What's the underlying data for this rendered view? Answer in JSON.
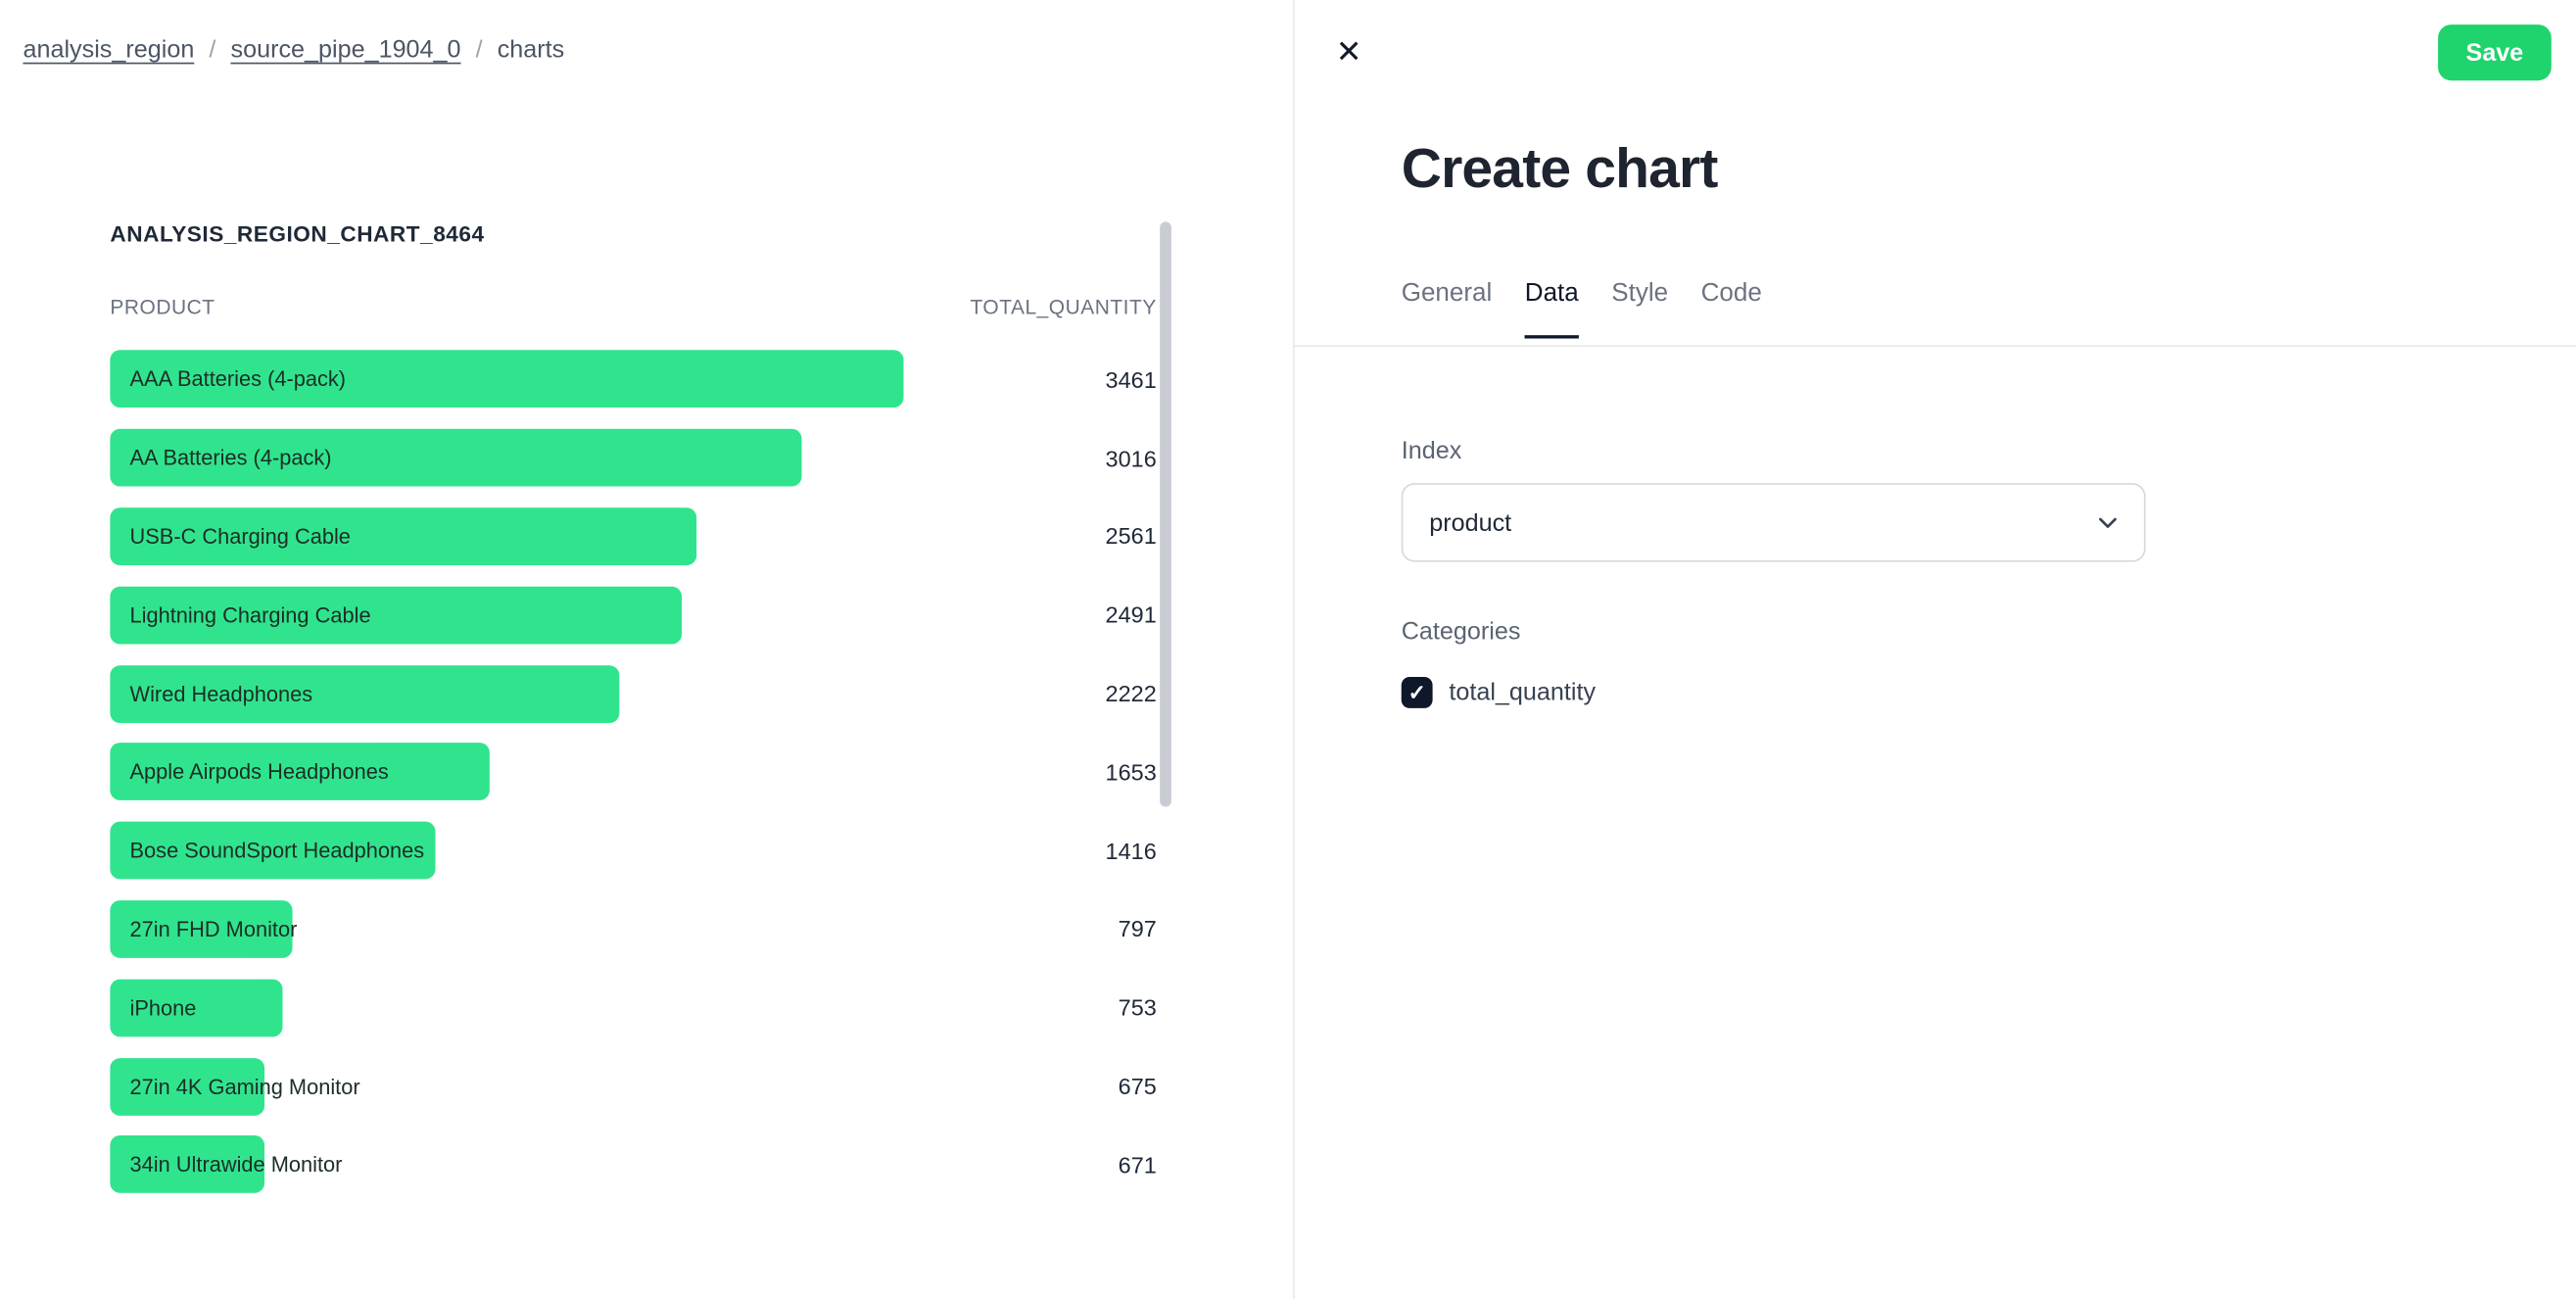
{
  "breadcrumb": {
    "separator": "/",
    "items": [
      {
        "label": "analysis_region",
        "type": "link"
      },
      {
        "label": "source_pipe_1904_0",
        "type": "link"
      },
      {
        "label": "charts",
        "type": "current"
      }
    ]
  },
  "chart_data": {
    "type": "bar",
    "orientation": "horizontal",
    "title": "ANALYSIS_REGION_CHART_8464",
    "ylabel": "PRODUCT",
    "xlabel": "TOTAL_QUANTITY",
    "categories": [
      "AAA Batteries (4-pack)",
      "AA Batteries (4-pack)",
      "USB-C Charging Cable",
      "Lightning Charging Cable",
      "Wired Headphones",
      "Apple Airpods Headphones",
      "Bose SoundSport Headphones",
      "27in FHD Monitor",
      "iPhone",
      "27in 4K Gaming Monitor",
      "34in Ultrawide Monitor"
    ],
    "values": [
      3461,
      3016,
      2561,
      2491,
      2222,
      1653,
      1416,
      797,
      753,
      675,
      671
    ],
    "xlim": [
      0,
      3461
    ],
    "bar_color": "#30E48E",
    "value_labels": true,
    "grid": false,
    "legend": false
  },
  "panel": {
    "title": "Create chart",
    "save_label": "Save",
    "tabs": [
      {
        "label": "General",
        "active": false
      },
      {
        "label": "Data",
        "active": true
      },
      {
        "label": "Style",
        "active": false
      },
      {
        "label": "Code",
        "active": false
      }
    ],
    "index": {
      "label": "Index",
      "value": "product"
    },
    "categories": {
      "label": "Categories",
      "options": [
        {
          "label": "total_quantity",
          "checked": true
        }
      ]
    }
  },
  "icons": {
    "close": "✕",
    "check": "✓"
  },
  "colors": {
    "bar_green": "#30E48E",
    "save_button_green": "#1FD36D",
    "checkbox_dark": "#0F172A",
    "tab_active_dark": "#0F172A"
  }
}
